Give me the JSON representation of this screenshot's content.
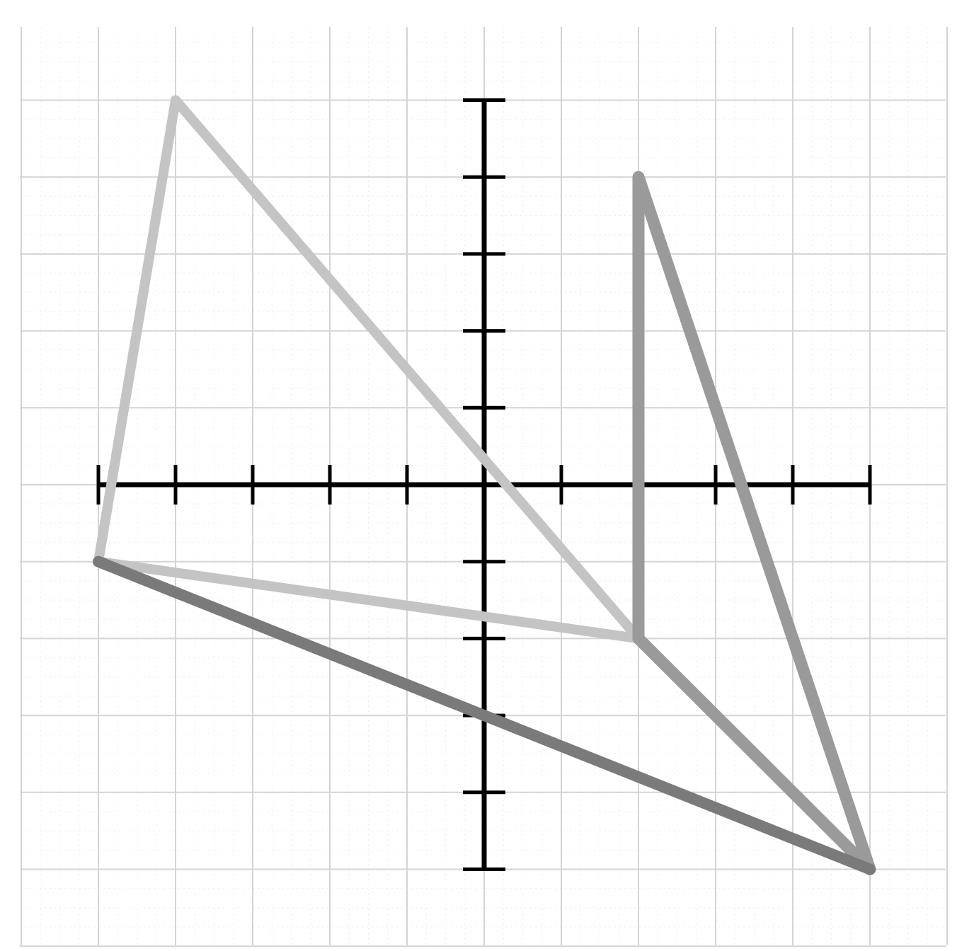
{
  "diagram": {
    "type": "coordinate-grid",
    "x_range": [
      -5,
      5
    ],
    "y_range": [
      -5,
      5
    ],
    "grid": true,
    "axes": true,
    "tick_labels": false
  },
  "chart_data": {
    "type": "line",
    "xlim": [
      -5,
      5
    ],
    "ylim": [
      -5,
      5
    ],
    "grid": true,
    "series": [
      {
        "id": "triangle-light",
        "color": "#c4c4c4",
        "points": [
          [
            -5,
            -1
          ],
          [
            -4,
            5
          ],
          [
            2,
            -2
          ]
        ],
        "closed": true
      },
      {
        "id": "triangle-medium",
        "color": "#9a9a9a",
        "points": [
          [
            2,
            4
          ],
          [
            2,
            -2
          ],
          [
            5,
            -5
          ]
        ],
        "closed": true
      },
      {
        "id": "segment-dark",
        "color": "#7a7a7a",
        "points": [
          [
            -5,
            -1
          ],
          [
            5,
            -5
          ]
        ],
        "closed": false
      }
    ]
  },
  "colors": {
    "axis": "#000000",
    "grid": "#d4d4d4",
    "background": "#ffffff"
  }
}
